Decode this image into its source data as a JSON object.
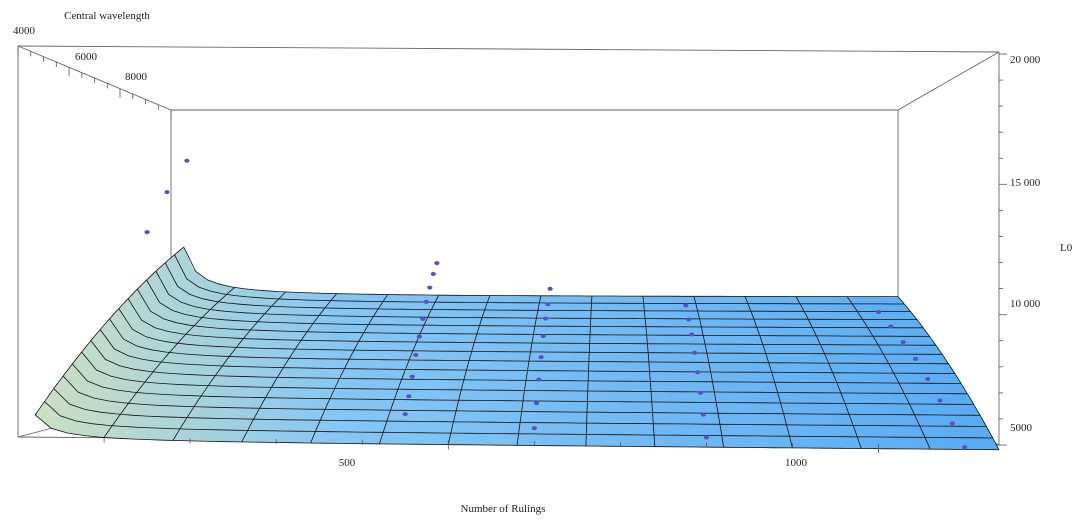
{
  "chart_data": {
    "type": "surface3d",
    "title": "",
    "xlabel": "Number of Rulings",
    "ylabel": "Central wavelength",
    "zlabel": "L0",
    "xlim": [
      0,
      1140
    ],
    "ylim": [
      4000,
      10000
    ],
    "zlim": [
      5000,
      20000
    ],
    "x_ticks": [
      {
        "value": 500,
        "label": "500"
      },
      {
        "value": 1000,
        "label": "1000"
      }
    ],
    "y_ticks": [
      {
        "value": 4000,
        "label": "4000"
      },
      {
        "value": 6000,
        "label": "6000"
      },
      {
        "value": 8000,
        "label": "8000"
      }
    ],
    "z_ticks": [
      {
        "value": 5000,
        "label": "5000"
      },
      {
        "value": 10000,
        "label": "10 000"
      },
      {
        "value": 15000,
        "label": "15 000"
      },
      {
        "value": 20000,
        "label": "20 000"
      }
    ],
    "surface_colors": {
      "low": "#5aabf3",
      "mid": "#86c6f4",
      "high": "#cde0c2",
      "mesh": "#111111"
    },
    "point_color": "#5a4fc8",
    "grid": false,
    "series": [
      {
        "values": [
          {
            "x": 150,
            "y": 4000,
            "z": 12900
          },
          {
            "x": 150,
            "y": 5000,
            "z": 14600
          },
          {
            "x": 150,
            "y": 6000,
            "z": 16100
          },
          {
            "x": 450,
            "y": 4000,
            "z": 6000
          },
          {
            "x": 450,
            "y": 4400,
            "z": 6600
          },
          {
            "x": 450,
            "y": 4800,
            "z": 7300
          },
          {
            "x": 450,
            "y": 5200,
            "z": 8100
          },
          {
            "x": 450,
            "y": 5600,
            "z": 8800
          },
          {
            "x": 450,
            "y": 6000,
            "z": 9500
          },
          {
            "x": 450,
            "y": 6400,
            "z": 10200
          },
          {
            "x": 450,
            "y": 6800,
            "z": 10800
          },
          {
            "x": 450,
            "y": 7200,
            "z": 11400
          },
          {
            "x": 450,
            "y": 7600,
            "z": 11900
          },
          {
            "x": 600,
            "y": 4000,
            "z": 5500
          },
          {
            "x": 600,
            "y": 4700,
            "z": 6300
          },
          {
            "x": 600,
            "y": 5400,
            "z": 7100
          },
          {
            "x": 600,
            "y": 6100,
            "z": 7900
          },
          {
            "x": 600,
            "y": 6800,
            "z": 8700
          },
          {
            "x": 600,
            "y": 7500,
            "z": 9400
          },
          {
            "x": 600,
            "y": 8200,
            "z": 10000
          },
          {
            "x": 600,
            "y": 8900,
            "z": 10700
          },
          {
            "x": 800,
            "y": 4000,
            "z": 5200
          },
          {
            "x": 800,
            "y": 4700,
            "z": 5900
          },
          {
            "x": 800,
            "y": 5400,
            "z": 6600
          },
          {
            "x": 800,
            "y": 6100,
            "z": 7300
          },
          {
            "x": 800,
            "y": 6800,
            "z": 8000
          },
          {
            "x": 800,
            "y": 7500,
            "z": 8700
          },
          {
            "x": 800,
            "y": 8200,
            "z": 9300
          },
          {
            "x": 800,
            "y": 8900,
            "z": 9900
          },
          {
            "x": 1100,
            "y": 4000,
            "z": 4900
          },
          {
            "x": 1100,
            "y": 4800,
            "z": 5600
          },
          {
            "x": 1100,
            "y": 5600,
            "z": 6300
          },
          {
            "x": 1100,
            "y": 6400,
            "z": 7000
          },
          {
            "x": 1100,
            "y": 7200,
            "z": 7700
          },
          {
            "x": 1100,
            "y": 8000,
            "z": 8300
          },
          {
            "x": 1100,
            "y": 8800,
            "z": 8900
          },
          {
            "x": 1100,
            "y": 9600,
            "z": 9500
          }
        ]
      }
    ]
  }
}
